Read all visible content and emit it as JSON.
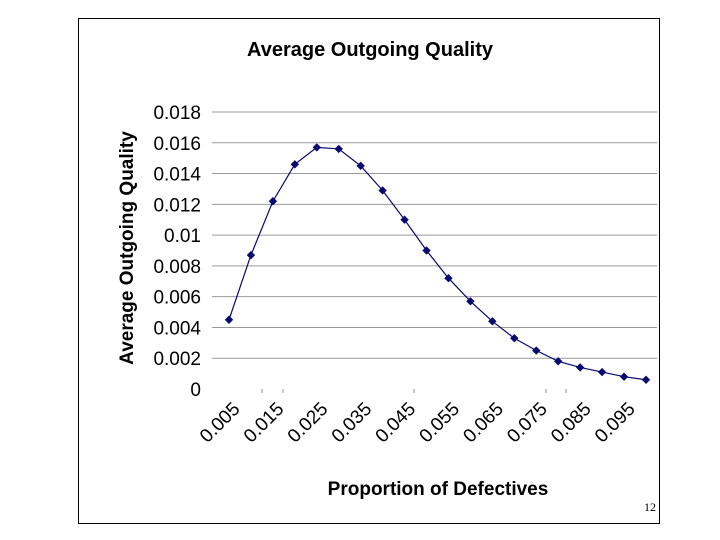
{
  "slide": {
    "page_number": "12"
  },
  "chart_data": {
    "type": "line",
    "title": "Average Outgoing Quality",
    "xlabel": "Proportion of Defectives",
    "ylabel": "Average Outgoing Quality",
    "ylim": [
      0,
      0.018
    ],
    "y_ticks": [
      "0.018",
      "0.016",
      "0.014",
      "0.012",
      "0.01",
      "0.008",
      "0.006",
      "0.004",
      "0.002",
      "0"
    ],
    "x_tick_labels": [
      "0.005",
      "0.015",
      "0.025",
      "0.035",
      "0.045",
      "0.055",
      "0.065",
      "0.075",
      "0.085",
      "0.095"
    ],
    "x": [
      0.005,
      0.01,
      0.015,
      0.02,
      0.025,
      0.03,
      0.035,
      0.04,
      0.045,
      0.05,
      0.055,
      0.06,
      0.065,
      0.07,
      0.075,
      0.08,
      0.085,
      0.09,
      0.095,
      0.1
    ],
    "series": [
      {
        "values": [
          0.0045,
          0.0087,
          0.0122,
          0.0146,
          0.0157,
          0.0156,
          0.0145,
          0.0129,
          0.011,
          0.009,
          0.0072,
          0.0057,
          0.0044,
          0.0033,
          0.0025,
          0.0018,
          0.0014,
          0.0011,
          0.0008,
          0.0006
        ],
        "color": "#0a0a6e",
        "marker": "diamond"
      }
    ],
    "grid": "horizontal",
    "legend": "none"
  }
}
